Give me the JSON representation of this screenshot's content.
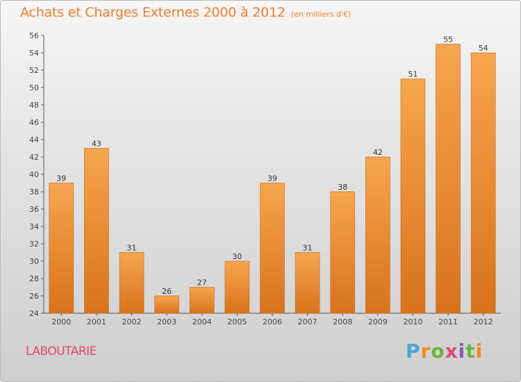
{
  "header": {
    "title": "Achats et Charges Externes 2000 à 2012",
    "subtitle": "(en milliers d'€)"
  },
  "footer": {
    "commune": "LABOUTARIE",
    "logo_letters": [
      "P",
      "r",
      "o",
      "x",
      "i",
      "t",
      "i"
    ]
  },
  "colors": {
    "bar": "#f0953a",
    "title": "#f27d2b",
    "commune": "#e3476f"
  },
  "chart_data": {
    "type": "bar",
    "title": "Achats et Charges Externes 2000 à 2012",
    "subtitle": "(en milliers d'€)",
    "categories": [
      "2000",
      "2001",
      "2002",
      "2003",
      "2004",
      "2005",
      "2006",
      "2007",
      "2008",
      "2009",
      "2010",
      "2011",
      "2012"
    ],
    "values": [
      39,
      43,
      31,
      26,
      27,
      30,
      39,
      31,
      38,
      42,
      51,
      55,
      54
    ],
    "ylim": [
      24,
      56
    ],
    "yticks": [
      24,
      26,
      28,
      30,
      32,
      34,
      36,
      38,
      40,
      42,
      44,
      46,
      48,
      50,
      52,
      54,
      56
    ],
    "grid": false,
    "data_labels": true
  }
}
